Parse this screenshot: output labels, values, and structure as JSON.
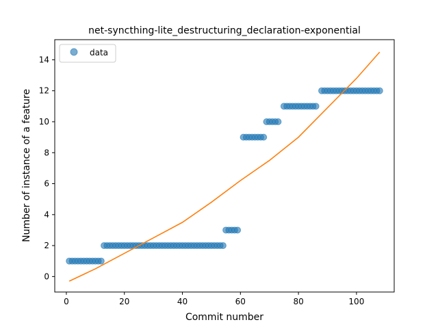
{
  "chart_data": {
    "type": "scatter",
    "title": "net-syncthing-lite_destructuring_declaration-exponential",
    "xlabel": "Commit number",
    "ylabel": "Number of instance of a feature",
    "xlim": [
      -4,
      113
    ],
    "ylim": [
      -1.0,
      15.3
    ],
    "xticks": [
      0,
      20,
      40,
      60,
      80,
      100
    ],
    "yticks": [
      0,
      2,
      4,
      6,
      8,
      10,
      12,
      14
    ],
    "legend": {
      "placement": "upper-left",
      "entries": [
        "data"
      ]
    },
    "grid": false,
    "colors": {
      "data": "#1f77b4",
      "fit": "#ff7f0e"
    },
    "series": [
      {
        "name": "data",
        "kind": "scatter",
        "runs": [
          {
            "x_start": 1,
            "x_end": 12,
            "y": 1
          },
          {
            "x_start": 13,
            "x_end": 54,
            "y": 2
          },
          {
            "x_start": 55,
            "x_end": 59,
            "y": 3
          },
          {
            "x_start": 61,
            "x_end": 68,
            "y": 9
          },
          {
            "x_start": 69,
            "x_end": 73,
            "y": 10
          },
          {
            "x_start": 75,
            "x_end": 86,
            "y": 11
          },
          {
            "x_start": 88,
            "x_end": 108,
            "y": 12
          }
        ]
      },
      {
        "kind": "line",
        "x": [
          1,
          10,
          20,
          30,
          40,
          50,
          60,
          70,
          80,
          90,
          100,
          108
        ],
        "y": [
          -0.3,
          0.5,
          1.5,
          2.5,
          3.5,
          4.8,
          6.2,
          7.5,
          9.0,
          10.9,
          12.8,
          14.5
        ]
      }
    ]
  }
}
